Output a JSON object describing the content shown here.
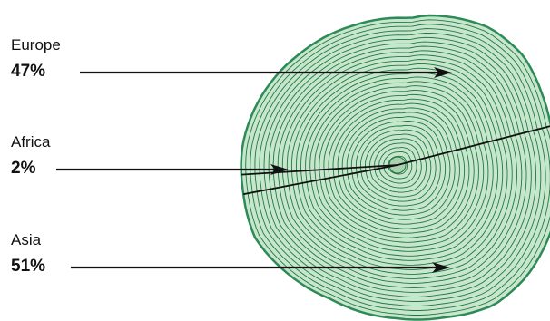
{
  "chart_data": {
    "type": "pie",
    "title": "",
    "categories": [
      "Europe",
      "Africa",
      "Asia"
    ],
    "values": [
      47,
      2,
      51
    ],
    "labels": [
      "47%",
      "2%",
      "51%"
    ],
    "style": "tree-ring pie",
    "colors": {
      "fill": "#c8e6cd",
      "rings": "#1f7a3f",
      "outline": "#2e8b57",
      "lines": "#111111"
    }
  }
}
